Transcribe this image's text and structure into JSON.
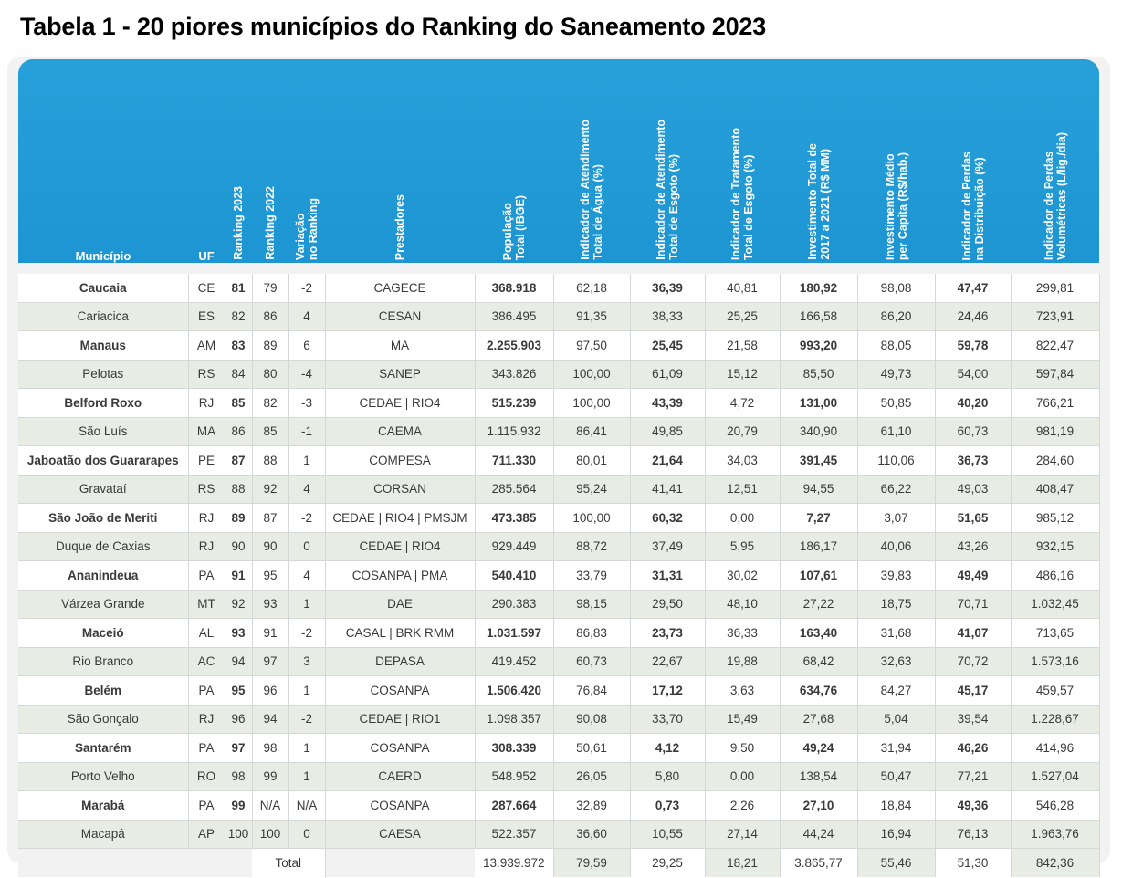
{
  "title": "Tabela 1 - 20 piores municípios do Ranking do Saneamento 2023",
  "colors": {
    "header": "#1d95d2",
    "row_alt": "#e7ece4",
    "row": "#ffffff"
  },
  "headers": [
    "Município",
    "UF",
    "Ranking 2023",
    "Ranking 2022",
    "Variação\nno Ranking",
    "Prestadores",
    "População\nTotal (IBGE)",
    "Indicador de Atendimento\nTotal de Água (%)",
    "Indicador de Atendimento\nTotal de Esgoto (%)",
    "Indicador de Tratamento\nTotal de Esgoto (%)",
    "Investimento Total de\n2017 a 2021 (R$ MM)",
    "Investimento Médio\nper Capita (R$/hab.)",
    "Indicador de Perdas\nna Distribuição (%)",
    "Indicador de Perdas\nVolumétricas (L/lig./dia)"
  ],
  "rows": [
    [
      "Caucaia",
      "CE",
      "81",
      "79",
      "-2",
      "CAGECE",
      "368.918",
      "62,18",
      "36,39",
      "40,81",
      "180,92",
      "98,08",
      "47,47",
      "299,81"
    ],
    [
      "Cariacica",
      "ES",
      "82",
      "86",
      "4",
      "CESAN",
      "386.495",
      "91,35",
      "38,33",
      "25,25",
      "166,58",
      "86,20",
      "24,46",
      "723,91"
    ],
    [
      "Manaus",
      "AM",
      "83",
      "89",
      "6",
      "MA",
      "2.255.903",
      "97,50",
      "25,45",
      "21,58",
      "993,20",
      "88,05",
      "59,78",
      "822,47"
    ],
    [
      "Pelotas",
      "RS",
      "84",
      "80",
      "-4",
      "SANEP",
      "343.826",
      "100,00",
      "61,09",
      "15,12",
      "85,50",
      "49,73",
      "54,00",
      "597,84"
    ],
    [
      "Belford Roxo",
      "RJ",
      "85",
      "82",
      "-3",
      "CEDAE | RIO4",
      "515.239",
      "100,00",
      "43,39",
      "4,72",
      "131,00",
      "50,85",
      "40,20",
      "766,21"
    ],
    [
      "São Luís",
      "MA",
      "86",
      "85",
      "-1",
      "CAEMA",
      "1.115.932",
      "86,41",
      "49,85",
      "20,79",
      "340,90",
      "61,10",
      "60,73",
      "981,19"
    ],
    [
      "Jaboatão dos Guararapes",
      "PE",
      "87",
      "88",
      "1",
      "COMPESA",
      "711.330",
      "80,01",
      "21,64",
      "34,03",
      "391,45",
      "110,06",
      "36,73",
      "284,60"
    ],
    [
      "Gravataí",
      "RS",
      "88",
      "92",
      "4",
      "CORSAN",
      "285.564",
      "95,24",
      "41,41",
      "12,51",
      "94,55",
      "66,22",
      "49,03",
      "408,47"
    ],
    [
      "São João de Meriti",
      "RJ",
      "89",
      "87",
      "-2",
      "CEDAE | RIO4 | PMSJM",
      "473.385",
      "100,00",
      "60,32",
      "0,00",
      "7,27",
      "3,07",
      "51,65",
      "985,12"
    ],
    [
      "Duque de Caxias",
      "RJ",
      "90",
      "90",
      "0",
      "CEDAE | RIO4",
      "929.449",
      "88,72",
      "37,49",
      "5,95",
      "186,17",
      "40,06",
      "43,26",
      "932,15"
    ],
    [
      "Ananindeua",
      "PA",
      "91",
      "95",
      "4",
      "COSANPA | PMA",
      "540.410",
      "33,79",
      "31,31",
      "30,02",
      "107,61",
      "39,83",
      "49,49",
      "486,16"
    ],
    [
      "Várzea Grande",
      "MT",
      "92",
      "93",
      "1",
      "DAE",
      "290.383",
      "98,15",
      "29,50",
      "48,10",
      "27,22",
      "18,75",
      "70,71",
      "1.032,45"
    ],
    [
      "Maceió",
      "AL",
      "93",
      "91",
      "-2",
      "CASAL | BRK RMM",
      "1.031.597",
      "86,83",
      "23,73",
      "36,33",
      "163,40",
      "31,68",
      "41,07",
      "713,65"
    ],
    [
      "Rio Branco",
      "AC",
      "94",
      "97",
      "3",
      "DEPASA",
      "419.452",
      "60,73",
      "22,67",
      "19,88",
      "68,42",
      "32,63",
      "70,72",
      "1.573,16"
    ],
    [
      "Belém",
      "PA",
      "95",
      "96",
      "1",
      "COSANPA",
      "1.506.420",
      "76,84",
      "17,12",
      "3,63",
      "634,76",
      "84,27",
      "45,17",
      "459,57"
    ],
    [
      "São Gonçalo",
      "RJ",
      "96",
      "94",
      "-2",
      "CEDAE | RIO1",
      "1.098.357",
      "90,08",
      "33,70",
      "15,49",
      "27,68",
      "5,04",
      "39,54",
      "1.228,67"
    ],
    [
      "Santarém",
      "PA",
      "97",
      "98",
      "1",
      "COSANPA",
      "308.339",
      "50,61",
      "4,12",
      "9,50",
      "49,24",
      "31,94",
      "46,26",
      "414,96"
    ],
    [
      "Porto Velho",
      "RO",
      "98",
      "99",
      "1",
      "CAERD",
      "548.952",
      "26,05",
      "5,80",
      "0,00",
      "138,54",
      "50,47",
      "77,21",
      "1.527,04"
    ],
    [
      "Marabá",
      "PA",
      "99",
      "N/A",
      "N/A",
      "COSANPA",
      "287.664",
      "32,89",
      "0,73",
      "2,26",
      "27,10",
      "18,84",
      "49,36",
      "546,28"
    ],
    [
      "Macapá",
      "AP",
      "100",
      "100",
      "0",
      "CAESA",
      "522.357",
      "36,60",
      "10,55",
      "27,14",
      "44,24",
      "16,94",
      "76,13",
      "1.963,76"
    ]
  ],
  "total": {
    "label": "Total",
    "values": [
      "13.939.972",
      "79,59",
      "29,25",
      "18,21",
      "3.865,77",
      "55,46",
      "51,30",
      "842,36"
    ]
  }
}
